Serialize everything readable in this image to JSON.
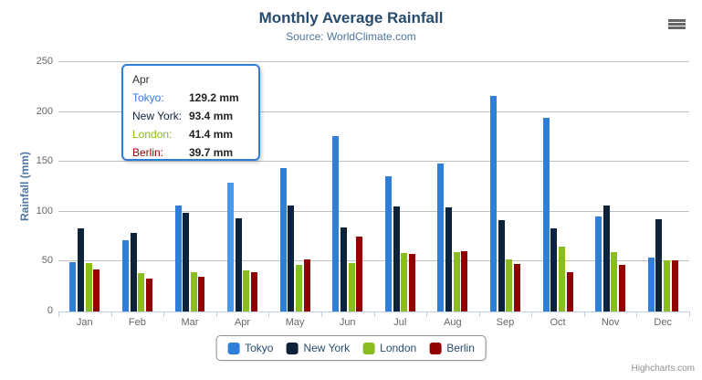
{
  "chart_data": {
    "type": "bar",
    "title": "Monthly Average Rainfall",
    "subtitle": "Source: WorldClimate.com",
    "xlabel": "",
    "ylabel": "Rainfall (mm)",
    "ylim": [
      0,
      250
    ],
    "yticks": [
      0,
      50,
      100,
      150,
      200,
      250
    ],
    "grid": true,
    "legend_position": "bottom",
    "categories": [
      "Jan",
      "Feb",
      "Mar",
      "Apr",
      "May",
      "Jun",
      "Jul",
      "Aug",
      "Sep",
      "Oct",
      "Nov",
      "Dec"
    ],
    "series": [
      {
        "name": "Tokyo",
        "color": "#2f7ed8",
        "hover_color": "#4a97f0",
        "values": [
          49.9,
          71.5,
          106.4,
          129.2,
          144.0,
          176.0,
          135.6,
          148.5,
          216.4,
          194.1,
          95.6,
          54.4
        ]
      },
      {
        "name": "New York",
        "color": "#0d233a",
        "values": [
          83.6,
          78.8,
          98.5,
          93.4,
          106.0,
          84.5,
          105.0,
          104.3,
          91.2,
          83.5,
          106.6,
          92.3
        ]
      },
      {
        "name": "London",
        "color": "#8bbc21",
        "values": [
          48.9,
          38.8,
          39.3,
          41.4,
          47.0,
          48.3,
          59.0,
          59.6,
          52.4,
          65.2,
          59.3,
          51.2
        ]
      },
      {
        "name": "Berlin",
        "color": "#910000",
        "values": [
          42.4,
          33.2,
          34.5,
          39.7,
          52.6,
          75.5,
          57.4,
          60.4,
          47.6,
          39.1,
          46.8,
          51.1
        ]
      }
    ],
    "hover": {
      "series": "Tokyo",
      "category": "Apr",
      "series_index": 0,
      "category_index": 3
    }
  },
  "tooltip": {
    "header": "Apr",
    "border_color": "#2f7ed8",
    "rows": [
      {
        "label": "Tokyo:",
        "value": "129.2 mm",
        "color": "#2f7ed8"
      },
      {
        "label": "New York:",
        "value": "93.4 mm",
        "color": "#0d233a"
      },
      {
        "label": "London:",
        "value": "41.4 mm",
        "color": "#8bbc21"
      },
      {
        "label": "Berlin:",
        "value": "39.7 mm",
        "color": "#910000"
      }
    ]
  },
  "toolbar": {
    "export_icon": "hamburger-menu-icon"
  },
  "credits": {
    "label": "Highcharts.com"
  },
  "theme": {
    "title_color": "#274b6d",
    "subtitle_color": "#4d759e",
    "axis_title_color": "#4d759e",
    "axis_label_color": "#666666",
    "gridline_color": "#c0c0c0",
    "axis_line_color": "#c0d0e0",
    "legend_border_color": "#909090",
    "legend_text_color": "#274b6d"
  }
}
